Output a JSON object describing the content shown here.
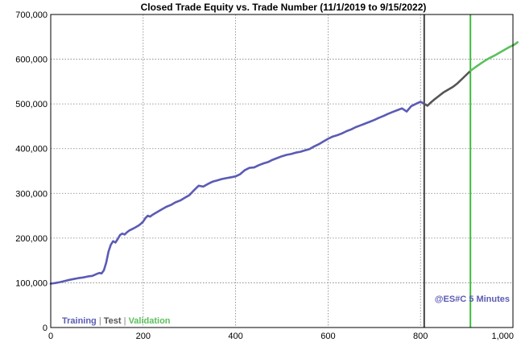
{
  "chart_data": {
    "type": "line",
    "title": "Closed Trade Equity vs. Trade Number (11/1/2019 to 9/15/2022)",
    "xlabel": "",
    "ylabel": "",
    "xlim": [
      0,
      1000
    ],
    "ylim": [
      0,
      700000
    ],
    "x_ticks": [
      0,
      200,
      400,
      600,
      800,
      1000
    ],
    "x_tick_labels": [
      "0",
      "200",
      "400",
      "600",
      "800",
      "1,000"
    ],
    "y_ticks": [
      0,
      100000,
      200000,
      300000,
      400000,
      500000,
      600000,
      700000
    ],
    "y_tick_labels": [
      "0",
      "100,000",
      "200,000",
      "300,000",
      "400,000",
      "500,000",
      "600,000",
      "700,000"
    ],
    "grid": true,
    "legend": {
      "position": "bottom-left",
      "entries": [
        "Training",
        "Test",
        "Validation"
      ],
      "separator": "|"
    },
    "annotation": "@ES#C 5 Minutes",
    "dividers": [
      {
        "x": 808,
        "color": "#404040"
      },
      {
        "x": 908,
        "color": "#3cbc3c"
      }
    ],
    "series": [
      {
        "name": "Training",
        "color": "#5b5bb5",
        "points": [
          [
            0,
            98000
          ],
          [
            10,
            99500
          ],
          [
            20,
            101500
          ],
          [
            30,
            104000
          ],
          [
            40,
            106500
          ],
          [
            50,
            108500
          ],
          [
            60,
            110500
          ],
          [
            70,
            112000
          ],
          [
            80,
            114000
          ],
          [
            90,
            115500
          ],
          [
            100,
            120000
          ],
          [
            105,
            122000
          ],
          [
            110,
            121000
          ],
          [
            115,
            128000
          ],
          [
            120,
            145000
          ],
          [
            125,
            170000
          ],
          [
            130,
            185000
          ],
          [
            135,
            193000
          ],
          [
            140,
            190000
          ],
          [
            145,
            198000
          ],
          [
            150,
            207000
          ],
          [
            155,
            210000
          ],
          [
            160,
            208000
          ],
          [
            165,
            213000
          ],
          [
            170,
            217000
          ],
          [
            180,
            222000
          ],
          [
            190,
            228000
          ],
          [
            195,
            232000
          ],
          [
            200,
            237000
          ],
          [
            205,
            245000
          ],
          [
            210,
            250000
          ],
          [
            215,
            248000
          ],
          [
            220,
            252000
          ],
          [
            230,
            258000
          ],
          [
            240,
            264000
          ],
          [
            250,
            270000
          ],
          [
            260,
            274000
          ],
          [
            270,
            280000
          ],
          [
            280,
            284000
          ],
          [
            290,
            290000
          ],
          [
            300,
            296000
          ],
          [
            310,
            307000
          ],
          [
            320,
            317000
          ],
          [
            330,
            315000
          ],
          [
            340,
            321000
          ],
          [
            350,
            326000
          ],
          [
            360,
            329000
          ],
          [
            370,
            332000
          ],
          [
            380,
            334000
          ],
          [
            390,
            336000
          ],
          [
            400,
            338000
          ],
          [
            410,
            343000
          ],
          [
            420,
            352000
          ],
          [
            430,
            357000
          ],
          [
            440,
            358000
          ],
          [
            450,
            363000
          ],
          [
            460,
            367000
          ],
          [
            470,
            370000
          ],
          [
            480,
            375000
          ],
          [
            490,
            379000
          ],
          [
            500,
            383000
          ],
          [
            510,
            386000
          ],
          [
            520,
            388000
          ],
          [
            530,
            391000
          ],
          [
            540,
            393000
          ],
          [
            550,
            396000
          ],
          [
            560,
            399000
          ],
          [
            570,
            405000
          ],
          [
            580,
            410000
          ],
          [
            590,
            416000
          ],
          [
            600,
            422000
          ],
          [
            610,
            427000
          ],
          [
            620,
            430000
          ],
          [
            630,
            434000
          ],
          [
            640,
            439000
          ],
          [
            650,
            443000
          ],
          [
            660,
            448000
          ],
          [
            670,
            452000
          ],
          [
            680,
            456000
          ],
          [
            690,
            460000
          ],
          [
            700,
            464000
          ],
          [
            710,
            469000
          ],
          [
            720,
            473000
          ],
          [
            730,
            478000
          ],
          [
            740,
            482000
          ],
          [
            750,
            486000
          ],
          [
            760,
            490000
          ],
          [
            770,
            483000
          ],
          [
            780,
            495000
          ],
          [
            790,
            500000
          ],
          [
            800,
            505000
          ],
          [
            808,
            500000
          ]
        ]
      },
      {
        "name": "Test",
        "color": "#555555",
        "points": [
          [
            808,
            500000
          ],
          [
            815,
            496000
          ],
          [
            822,
            503000
          ],
          [
            830,
            510000
          ],
          [
            840,
            518000
          ],
          [
            850,
            526000
          ],
          [
            860,
            532000
          ],
          [
            870,
            538000
          ],
          [
            880,
            546000
          ],
          [
            890,
            556000
          ],
          [
            900,
            566000
          ],
          [
            908,
            574000
          ]
        ]
      },
      {
        "name": "Validation",
        "color": "#5cc05c",
        "points": [
          [
            908,
            574000
          ],
          [
            920,
            583000
          ],
          [
            930,
            590000
          ],
          [
            940,
            597000
          ],
          [
            950,
            603000
          ],
          [
            960,
            608000
          ],
          [
            970,
            614000
          ],
          [
            980,
            620000
          ],
          [
            990,
            626000
          ],
          [
            1000,
            631000
          ],
          [
            1005,
            634000
          ],
          [
            1010,
            638000
          ]
        ]
      }
    ]
  }
}
